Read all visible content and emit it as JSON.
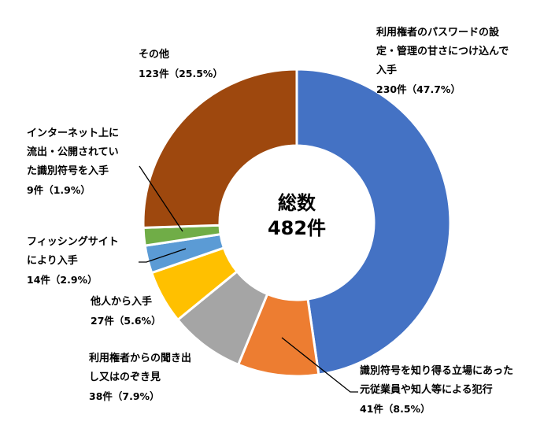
{
  "chart_data": {
    "type": "pie",
    "center_label": {
      "line1": "総数",
      "line2": "482件"
    },
    "total": 482,
    "slices": [
      {
        "name": "利用権者のパスワードの設定・管理の甘さにつけ込んで入手",
        "label_lines": [
          "利用権者のパスワードの設",
          "定・管理の甘さにつけ込んで",
          "入手"
        ],
        "count": 230,
        "value_text": "230件（47.7%）",
        "percent": 47.7,
        "color": "#4472C4"
      },
      {
        "name": "識別符号を知り得る立場にあった元従業員や知人等による犯行",
        "label_lines": [
          "識別符号を知り得る立場にあった",
          "元従業員や知人等による犯行"
        ],
        "count": 41,
        "value_text": "41件（8.5%）",
        "percent": 8.5,
        "color": "#ED7D31"
      },
      {
        "name": "利用権者からの聞き出し又はのぞき見",
        "label_lines": [
          "利用権者からの聞き出",
          "し又はのぞき見"
        ],
        "count": 38,
        "value_text": "38件（7.9%）",
        "percent": 7.9,
        "color": "#A5A5A5"
      },
      {
        "name": "他人から入手",
        "label_lines": [
          "他人から入手"
        ],
        "count": 27,
        "value_text": "27件（5.6%）",
        "percent": 5.6,
        "color": "#FFC000"
      },
      {
        "name": "フィッシングサイトにより入手",
        "label_lines": [
          "フィッシングサイト",
          "により入手"
        ],
        "count": 14,
        "value_text": "14件（2.9%）",
        "percent": 2.9,
        "color": "#5B9BD5"
      },
      {
        "name": "インターネット上に流出・公開されていた識別符号を入手",
        "label_lines": [
          "インターネット上に",
          "流出・公開されてい",
          "た識別符号を入手"
        ],
        "count": 9,
        "value_text": "9件（1.9%）",
        "percent": 1.9,
        "color": "#70AD47"
      },
      {
        "name": "その他",
        "label_lines": [
          "その他"
        ],
        "count": 123,
        "value_text": "123件（25.5%）",
        "percent": 25.5,
        "color": "#9E480E"
      }
    ]
  }
}
